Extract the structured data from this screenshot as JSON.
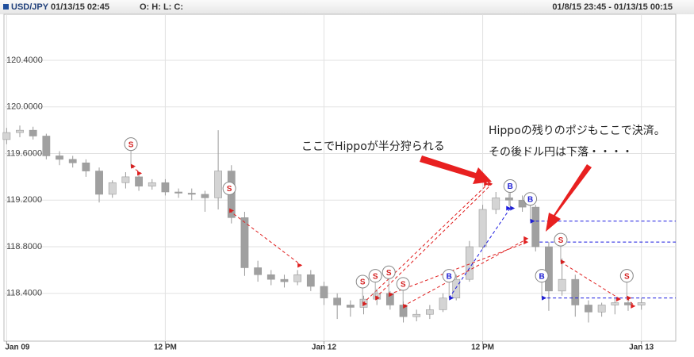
{
  "chart_data": {
    "type": "candlestick",
    "symbol": "USD/JPY",
    "time": "01/13/15 02:45",
    "ohlc_label": "O: H: L: C:",
    "range": "01/8/15 23:45 - 01/13/15 00:15",
    "x": [
      0,
      1,
      2,
      3,
      4,
      5,
      6,
      7,
      8,
      9,
      10,
      11,
      12,
      13,
      14,
      15,
      16,
      17,
      18,
      19,
      20,
      21,
      22,
      23,
      24,
      25,
      26,
      27,
      28,
      29,
      30,
      31,
      32,
      33,
      34,
      35,
      36,
      37,
      38,
      39,
      40,
      41,
      42,
      43,
      44,
      45,
      46,
      47,
      48
    ],
    "open": [
      119.72,
      119.78,
      119.8,
      119.75,
      119.58,
      119.55,
      119.52,
      119.45,
      119.25,
      119.35,
      119.4,
      119.32,
      119.35,
      119.27,
      119.26,
      119.25,
      119.22,
      119.45,
      119.05,
      118.62,
      118.56,
      118.52,
      118.5,
      118.56,
      118.46,
      118.36,
      118.3,
      118.28,
      118.35,
      118.4,
      118.3,
      118.2,
      118.22,
      118.26,
      118.36,
      118.52,
      118.8,
      119.12,
      119.22,
      119.2,
      119.14,
      118.8,
      118.42,
      118.52,
      118.3,
      118.24,
      118.3,
      118.32,
      118.3
    ],
    "high": [
      119.82,
      119.84,
      119.83,
      119.77,
      119.62,
      119.58,
      119.55,
      119.48,
      119.37,
      119.44,
      119.44,
      119.38,
      119.38,
      119.3,
      119.3,
      119.28,
      119.8,
      119.5,
      119.1,
      118.68,
      118.6,
      118.56,
      118.6,
      118.6,
      118.5,
      118.4,
      118.34,
      118.38,
      118.44,
      118.42,
      118.33,
      118.26,
      118.3,
      118.4,
      118.56,
      118.85,
      119.16,
      119.27,
      119.26,
      119.24,
      119.16,
      118.84,
      118.7,
      118.56,
      118.34,
      118.32,
      118.36,
      118.36,
      118.36
    ],
    "low": [
      119.68,
      119.74,
      119.72,
      119.55,
      119.5,
      119.48,
      119.4,
      119.18,
      119.22,
      119.3,
      119.28,
      119.29,
      119.24,
      119.22,
      119.2,
      119.1,
      119.12,
      119.0,
      118.55,
      118.5,
      118.47,
      118.45,
      118.47,
      118.42,
      118.3,
      118.18,
      118.2,
      118.22,
      118.3,
      118.26,
      118.15,
      118.16,
      118.18,
      118.24,
      118.34,
      118.5,
      118.78,
      119.08,
      119.15,
      119.1,
      118.76,
      118.25,
      118.38,
      118.2,
      118.15,
      118.2,
      118.22,
      118.25,
      118.26
    ],
    "close": [
      119.78,
      119.8,
      119.75,
      119.58,
      119.55,
      119.52,
      119.45,
      119.25,
      119.35,
      119.4,
      119.32,
      119.35,
      119.27,
      119.26,
      119.25,
      119.22,
      119.45,
      119.05,
      118.62,
      118.56,
      118.52,
      118.5,
      118.56,
      118.46,
      118.36,
      118.3,
      118.28,
      118.35,
      118.4,
      118.3,
      118.2,
      118.22,
      118.26,
      118.36,
      118.52,
      118.8,
      119.12,
      119.22,
      119.2,
      119.14,
      118.8,
      118.42,
      118.52,
      118.3,
      118.24,
      118.3,
      118.32,
      118.3,
      118.32
    ],
    "up_color": "#d4d4d4",
    "down_color": "#a0a0a0",
    "xlim": [
      -0.2,
      50.6
    ],
    "ylim": [
      117.99,
      120.795
    ],
    "xticks": [
      {
        "value": 0,
        "label": "Jan 09"
      },
      {
        "value": 12,
        "label": "12 PM"
      },
      {
        "value": 24,
        "label": "Jan 12"
      },
      {
        "value": 36,
        "label": "12 PM"
      },
      {
        "value": 48,
        "label": "Jan 13"
      }
    ],
    "yticks": [
      {
        "value": 118.4,
        "label": "118.4000"
      },
      {
        "value": 118.8,
        "label": "118.8000"
      },
      {
        "value": 119.2,
        "label": "119.2000"
      },
      {
        "value": 119.6,
        "label": "119.6000"
      },
      {
        "value": 120.0,
        "label": "120.0000"
      },
      {
        "value": 120.4,
        "label": "120.4000"
      }
    ],
    "grid": true,
    "signals": [
      {
        "label": "S",
        "x": 9.4,
        "price": 119.49
      },
      {
        "label": "S",
        "x": 16.84,
        "price": 119.11
      },
      {
        "label": "S",
        "x": 26.92,
        "price": 118.31
      },
      {
        "label": "S",
        "x": 27.88,
        "price": 118.36
      },
      {
        "label": "S",
        "x": 28.9,
        "price": 118.39
      },
      {
        "label": "S",
        "x": 29.98,
        "price": 118.29
      },
      {
        "label": "B",
        "x": 33.46,
        "price": 118.36
      },
      {
        "label": "B",
        "x": 38.08,
        "price": 119.13
      },
      {
        "label": "B",
        "x": 39.6,
        "price": 119.02
      },
      {
        "label": "B",
        "x": 40.47,
        "price": 118.36
      },
      {
        "label": "S",
        "x": 41.9,
        "price": 118.67
      },
      {
        "label": "S",
        "x": 46.9,
        "price": 118.36
      }
    ],
    "trades": [
      {
        "color": "#e02020",
        "x": [
          9.4,
          10.18
        ],
        "values": [
          119.49,
          119.43
        ]
      },
      {
        "color": "#e02020",
        "x": [
          16.84,
          22.3
        ],
        "values": [
          119.11,
          118.64
        ]
      },
      {
        "color": "#e02020",
        "x": [
          26.92,
          36.4
        ],
        "values": [
          118.31,
          119.34
        ]
      },
      {
        "color": "#e02020",
        "x": [
          27.88,
          36.7
        ],
        "values": [
          118.36,
          119.34
        ]
      },
      {
        "color": "#e02020",
        "x": [
          28.9,
          39.4
        ],
        "values": [
          118.39,
          118.84
        ]
      },
      {
        "color": "#e02020",
        "x": [
          29.98,
          39.4
        ],
        "values": [
          118.29,
          118.87
        ]
      },
      {
        "color": "#e02020",
        "x": [
          41.9,
          46.4
        ],
        "values": [
          118.67,
          118.35
        ]
      },
      {
        "color": "#e02020",
        "x": [
          46.9,
          47.5
        ],
        "values": [
          118.36,
          118.29
        ]
      },
      {
        "color": "#1a1ae0",
        "x": [
          33.46,
          38.08
        ],
        "values": [
          118.36,
          119.13
        ]
      },
      {
        "color": "#1a1ae0",
        "x": [
          39.6,
          50.6
        ],
        "values": [
          119.02,
          119.02
        ]
      },
      {
        "color": "#1a1ae0",
        "x": [
          40.3,
          50.6
        ],
        "values": [
          118.84,
          118.84
        ]
      },
      {
        "color": "#1a1ae0",
        "x": [
          40.47,
          50.6
        ],
        "values": [
          118.36,
          118.36
        ]
      }
    ],
    "annotations": [
      "ここでHippoが半分狩られる",
      "Hippoの残りのポジもここで決済。",
      "その後ドル円は下落・・・・"
    ]
  }
}
